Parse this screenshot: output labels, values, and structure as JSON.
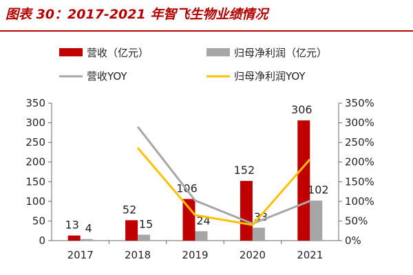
{
  "title": "图表 30：2017-2021 年智飞生物业绩情况",
  "chart_data": {
    "type": "bar+line",
    "categories": [
      "2017",
      "2018",
      "2019",
      "2020",
      "2021"
    ],
    "series": [
      {
        "name": "营收（亿元）",
        "kind": "bar",
        "axis": "left",
        "color": "#c00000",
        "values": [
          13,
          52,
          106,
          152,
          306
        ],
        "labels": [
          "13",
          "52",
          "106",
          "152",
          "306"
        ]
      },
      {
        "name": "归母净利润（亿元）",
        "kind": "bar",
        "axis": "left",
        "color": "#a6a6a6",
        "values": [
          4,
          15,
          24,
          33,
          102
        ],
        "labels": [
          "4",
          "15",
          "24",
          "33",
          "102"
        ]
      },
      {
        "name": "营收YOY",
        "kind": "line",
        "axis": "right",
        "color": "#a6a6a6",
        "values": [
          null,
          290,
          102,
          43,
          101
        ]
      },
      {
        "name": "归母净利润YOY",
        "kind": "line",
        "axis": "right",
        "color": "#ffc000",
        "values": [
          null,
          236,
          65,
          40,
          207
        ]
      }
    ],
    "y_left": {
      "min": 0,
      "max": 350,
      "ticks": [
        "0",
        "50",
        "100",
        "150",
        "200",
        "250",
        "300",
        "350"
      ]
    },
    "y_right": {
      "min": 0,
      "max": 350,
      "ticks": [
        "0%",
        "50%",
        "100%",
        "150%",
        "200%",
        "250%",
        "300%",
        "350%"
      ]
    },
    "legend_position": "top"
  }
}
